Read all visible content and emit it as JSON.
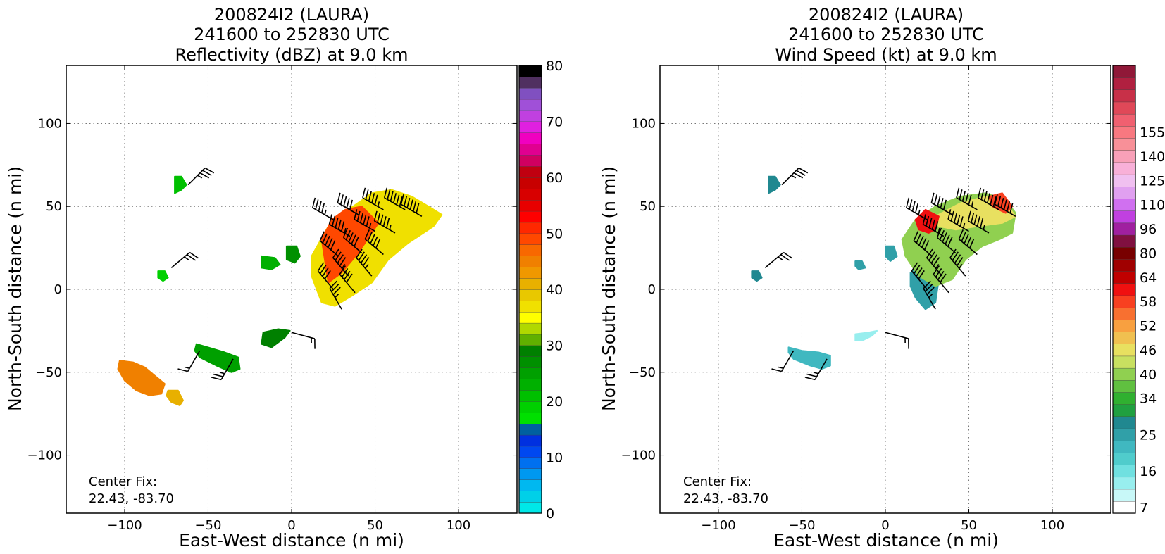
{
  "chart_data": [
    {
      "type": "heatmap",
      "title_lines": [
        "200824I2 (LAURA)",
        "241600 to 252830 UTC",
        "Reflectivity (dBZ) at 9.0 km"
      ],
      "xlabel": "East-West distance (n mi)",
      "ylabel": "North-South distance (n mi)",
      "xlim": [
        -135,
        135
      ],
      "ylim": [
        -135,
        135
      ],
      "xticks": [
        -100,
        -50,
        0,
        50,
        100
      ],
      "yticks": [
        -100,
        -50,
        0,
        50,
        100
      ],
      "grid": true,
      "annotation_lines": [
        "Center Fix:",
        "22.43, -83.70"
      ],
      "colorbar": {
        "min": 0,
        "max": 80,
        "tick_values": [
          0,
          10,
          20,
          30,
          40,
          50,
          60,
          70,
          80
        ],
        "tick_labels": [
          "0",
          "10",
          "20",
          "30",
          "40",
          "50",
          "60",
          "70",
          "80"
        ],
        "colors": [
          "#00e8e8",
          "#00d0e8",
          "#00b8f0",
          "#0098f0",
          "#0070f0",
          "#0048f0",
          "#0030e0",
          "#0060a0",
          "#00e000",
          "#00d000",
          "#00c000",
          "#00b000",
          "#00a000",
          "#009000",
          "#008000",
          "#60b000",
          "#b0d800",
          "#ffff00",
          "#f0e000",
          "#e8c800",
          "#e8b000",
          "#f09800",
          "#f08000",
          "#f86800",
          "#ff4800",
          "#ff2800",
          "#ff0000",
          "#e80000",
          "#d80000",
          "#c80000",
          "#c00010",
          "#d00060",
          "#e00090",
          "#f000c0",
          "#e020e0",
          "#c040e0",
          "#a050d8",
          "#8050c0",
          "#503060",
          "#000000"
        ]
      },
      "echo_regions": [
        {
          "x": [
            -103,
            -95,
            -88,
            -82,
            -76,
            -78,
            -85,
            -93,
            -100,
            -104
          ],
          "y": [
            -43,
            -44,
            -47,
            -52,
            -57,
            -63,
            -64,
            -61,
            -55,
            -48
          ],
          "level": 22
        },
        {
          "x": [
            -74,
            -68,
            -65,
            -67,
            -72,
            -75
          ],
          "y": [
            -61,
            -61,
            -67,
            -70,
            -68,
            -64
          ],
          "level": 20
        },
        {
          "x": [
            -70,
            -66,
            -63,
            -66,
            -70
          ],
          "y": [
            68,
            68,
            63,
            60,
            58
          ],
          "level": 10
        },
        {
          "x": [
            -80,
            -76,
            -74,
            -77,
            -80
          ],
          "y": [
            11,
            11,
            7,
            5,
            7
          ],
          "level": 9
        },
        {
          "x": [
            -57,
            -50,
            -40,
            -32,
            -31,
            -36,
            -45,
            -55,
            -58
          ],
          "y": [
            -33,
            -35,
            -38,
            -41,
            -48,
            -50,
            -46,
            -41,
            -37
          ],
          "level": 12
        },
        {
          "x": [
            -17,
            -8,
            -1,
            -4,
            -12,
            -18
          ],
          "y": [
            -26,
            -24,
            -25,
            -29,
            -35,
            -33
          ],
          "level": 14
        },
        {
          "x": [
            -18,
            -10,
            -7,
            -12,
            -18
          ],
          "y": [
            20,
            19,
            15,
            12,
            13
          ],
          "level": 11
        },
        {
          "x": [
            -3,
            3,
            5,
            2,
            -3
          ],
          "y": [
            26,
            26,
            20,
            16,
            18
          ],
          "level": 13
        },
        {
          "x": [
            12,
            22,
            34,
            48,
            60,
            72,
            82,
            90,
            85,
            70,
            58,
            48,
            36,
            26,
            18,
            12
          ],
          "y": [
            20,
            38,
            48,
            58,
            60,
            56,
            50,
            45,
            38,
            28,
            18,
            4,
            -4,
            -10,
            -8,
            8
          ],
          "level": 18
        },
        {
          "x": [
            18,
            24,
            32,
            42,
            52,
            40,
            30,
            22
          ],
          "y": [
            30,
            42,
            48,
            50,
            40,
            22,
            10,
            4
          ],
          "level": 24
        }
      ],
      "wind_barbs": [
        {
          "x": -62,
          "y": 63,
          "direction_deg": 45,
          "speed_kt": 35
        },
        {
          "x": -72,
          "y": 13,
          "direction_deg": 50,
          "speed_kt": 25
        },
        {
          "x": -55,
          "y": -37,
          "direction_deg": 210,
          "speed_kt": 15
        },
        {
          "x": -35,
          "y": -42,
          "direction_deg": 210,
          "speed_kt": 25
        },
        {
          "x": 0,
          "y": -26,
          "direction_deg": 105,
          "speed_kt": 15
        },
        {
          "x": 25,
          "y": 42,
          "direction_deg": 300,
          "speed_kt": 45
        },
        {
          "x": 40,
          "y": 45,
          "direction_deg": 300,
          "speed_kt": 50
        },
        {
          "x": 55,
          "y": 48,
          "direction_deg": 300,
          "speed_kt": 55
        },
        {
          "x": 68,
          "y": 48,
          "direction_deg": 300,
          "speed_kt": 60
        },
        {
          "x": 78,
          "y": 44,
          "direction_deg": 300,
          "speed_kt": 60
        },
        {
          "x": 35,
          "y": 32,
          "direction_deg": 300,
          "speed_kt": 55
        },
        {
          "x": 50,
          "y": 35,
          "direction_deg": 300,
          "speed_kt": 55
        },
        {
          "x": 62,
          "y": 34,
          "direction_deg": 300,
          "speed_kt": 55
        },
        {
          "x": 28,
          "y": 20,
          "direction_deg": 310,
          "speed_kt": 50
        },
        {
          "x": 42,
          "y": 22,
          "direction_deg": 310,
          "speed_kt": 50
        },
        {
          "x": 55,
          "y": 21,
          "direction_deg": 310,
          "speed_kt": 50
        },
        {
          "x": 34,
          "y": 8,
          "direction_deg": 320,
          "speed_kt": 45
        },
        {
          "x": 48,
          "y": 8,
          "direction_deg": 320,
          "speed_kt": 45
        },
        {
          "x": 25,
          "y": 0,
          "direction_deg": 320,
          "speed_kt": 40
        },
        {
          "x": 38,
          "y": -2,
          "direction_deg": 320,
          "speed_kt": 40
        },
        {
          "x": 30,
          "y": -12,
          "direction_deg": 330,
          "speed_kt": 35
        }
      ]
    },
    {
      "type": "heatmap",
      "title_lines": [
        "200824I2 (LAURA)",
        "241600 to 252830 UTC",
        "Wind Speed (kt) at 9.0 km"
      ],
      "xlabel": "East-West distance (n mi)",
      "ylabel": "North-South distance (n mi)",
      "xlim": [
        -135,
        135
      ],
      "ylim": [
        -135,
        135
      ],
      "xticks": [
        -100,
        -50,
        0,
        50,
        100
      ],
      "yticks": [
        -100,
        -50,
        0,
        50,
        100
      ],
      "grid": true,
      "annotation_lines": [
        "Center Fix:",
        "22.43, -83.70"
      ],
      "colorbar": {
        "tick_labels": [
          "7",
          "16",
          "25",
          "34",
          "40",
          "46",
          "52",
          "58",
          "64",
          "80",
          "96",
          "110",
          "125",
          "140",
          "155"
        ],
        "tick_bins": [
          0,
          3,
          6,
          9,
          11,
          13,
          15,
          17,
          19,
          21,
          23,
          25,
          27,
          29,
          31
        ],
        "colors": [
          "#ffffff",
          "#c8f8f8",
          "#98eeee",
          "#70e0e0",
          "#50cccc",
          "#40b8c0",
          "#30a0a8",
          "#208890",
          "#20a040",
          "#30b030",
          "#60c040",
          "#90d050",
          "#c8e060",
          "#e8e060",
          "#f0c050",
          "#f8a040",
          "#f87030",
          "#f84020",
          "#f01010",
          "#c00000",
          "#a00000",
          "#780000",
          "#801040",
          "#a020a0",
          "#c040e0",
          "#d070f0",
          "#e0a0f0",
          "#f0c0f0",
          "#f8b0d8",
          "#f8a0b8",
          "#f89098",
          "#f87880",
          "#f06070",
          "#e04858",
          "#c83048",
          "#b02040",
          "#901838"
        ]
      },
      "speed_regions": [
        {
          "x": [
            -70,
            -66,
            -63,
            -66,
            -70
          ],
          "y": [
            68,
            68,
            63,
            60,
            58
          ],
          "level": 7
        },
        {
          "x": [
            -80,
            -76,
            -74,
            -77,
            -80
          ],
          "y": [
            11,
            11,
            7,
            5,
            7
          ],
          "level": 7
        },
        {
          "x": [
            -18,
            -14,
            -12,
            -16,
            -18
          ],
          "y": [
            17,
            17,
            13,
            12,
            14
          ],
          "level": 6
        },
        {
          "x": [
            0,
            5,
            7,
            3,
            0
          ],
          "y": [
            26,
            26,
            20,
            17,
            20
          ],
          "level": 6
        },
        {
          "x": [
            -58,
            -50,
            -40,
            -33,
            -33,
            -38,
            -45,
            -55,
            -58
          ],
          "y": [
            -35,
            -37,
            -38,
            -40,
            -46,
            -48,
            -46,
            -42,
            -38
          ],
          "level": 5
        },
        {
          "x": [
            -18,
            -10,
            -5,
            -8,
            -14,
            -18
          ],
          "y": [
            -27,
            -26,
            -25,
            -28,
            -31,
            -31
          ],
          "level": 2
        },
        {
          "x": [
            15,
            20,
            28,
            32,
            30,
            24,
            18,
            15
          ],
          "y": [
            10,
            14,
            14,
            6,
            -8,
            -12,
            -5,
            2
          ],
          "level": 6
        },
        {
          "x": [
            10,
            18,
            30,
            45,
            60,
            72,
            78,
            76,
            68,
            58,
            48,
            40,
            30,
            20,
            12
          ],
          "y": [
            30,
            42,
            50,
            56,
            58,
            54,
            46,
            34,
            30,
            26,
            18,
            6,
            2,
            8,
            20
          ],
          "level": 11
        },
        {
          "x": [
            30,
            45,
            60,
            72,
            78,
            70,
            55,
            42,
            32
          ],
          "y": [
            44,
            52,
            56,
            52,
            44,
            40,
            38,
            36,
            38
          ],
          "level": 13
        },
        {
          "x": [
            18,
            24,
            32,
            30,
            26,
            20
          ],
          "y": [
            42,
            48,
            44,
            36,
            34,
            36
          ],
          "level": 18
        },
        {
          "x": [
            62,
            70,
            76,
            72,
            64
          ],
          "y": [
            56,
            58,
            50,
            46,
            50
          ],
          "level": 17
        }
      ],
      "wind_barbs": [
        {
          "x": -62,
          "y": 63,
          "direction_deg": 45,
          "speed_kt": 35
        },
        {
          "x": -72,
          "y": 13,
          "direction_deg": 50,
          "speed_kt": 25
        },
        {
          "x": -55,
          "y": -37,
          "direction_deg": 210,
          "speed_kt": 15
        },
        {
          "x": -35,
          "y": -42,
          "direction_deg": 210,
          "speed_kt": 25
        },
        {
          "x": 0,
          "y": -26,
          "direction_deg": 105,
          "speed_kt": 15
        },
        {
          "x": 25,
          "y": 42,
          "direction_deg": 300,
          "speed_kt": 45
        },
        {
          "x": 40,
          "y": 45,
          "direction_deg": 300,
          "speed_kt": 50
        },
        {
          "x": 55,
          "y": 48,
          "direction_deg": 300,
          "speed_kt": 55
        },
        {
          "x": 68,
          "y": 48,
          "direction_deg": 300,
          "speed_kt": 60
        },
        {
          "x": 78,
          "y": 44,
          "direction_deg": 300,
          "speed_kt": 60
        },
        {
          "x": 35,
          "y": 32,
          "direction_deg": 300,
          "speed_kt": 55
        },
        {
          "x": 50,
          "y": 35,
          "direction_deg": 300,
          "speed_kt": 55
        },
        {
          "x": 62,
          "y": 34,
          "direction_deg": 300,
          "speed_kt": 55
        },
        {
          "x": 28,
          "y": 20,
          "direction_deg": 310,
          "speed_kt": 50
        },
        {
          "x": 42,
          "y": 22,
          "direction_deg": 310,
          "speed_kt": 50
        },
        {
          "x": 55,
          "y": 21,
          "direction_deg": 310,
          "speed_kt": 50
        },
        {
          "x": 34,
          "y": 8,
          "direction_deg": 320,
          "speed_kt": 45
        },
        {
          "x": 48,
          "y": 8,
          "direction_deg": 320,
          "speed_kt": 45
        },
        {
          "x": 25,
          "y": 0,
          "direction_deg": 320,
          "speed_kt": 40
        },
        {
          "x": 38,
          "y": -2,
          "direction_deg": 320,
          "speed_kt": 40
        },
        {
          "x": 30,
          "y": -12,
          "direction_deg": 330,
          "speed_kt": 35
        }
      ]
    }
  ]
}
